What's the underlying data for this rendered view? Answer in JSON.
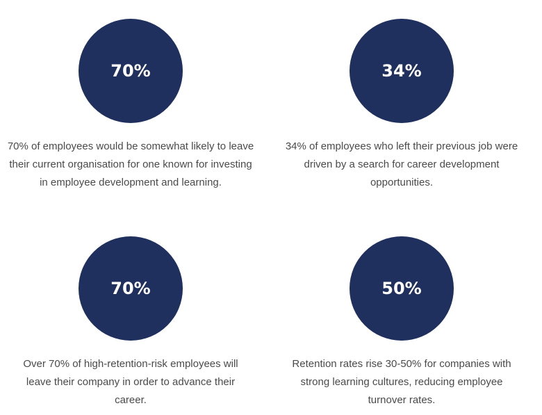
{
  "stats": [
    {
      "value": "70%",
      "text": "70% of employees would be somewhat likely to leave their current organisation for one known for investing in employee development and learning."
    },
    {
      "value": "34%",
      "text": "34% of employees who left their previous job were driven by a search for career development opportunities."
    },
    {
      "value": "70%",
      "text": "Over 70% of high-retention-risk employees will leave their company in order to advance their career."
    },
    {
      "value": "50%",
      "text": "Retention rates rise 30-50% for companies with strong learning cultures, reducing employee turnover rates."
    }
  ],
  "colors": {
    "circle": "#1f2f5e",
    "text": "#4a4a4a"
  }
}
